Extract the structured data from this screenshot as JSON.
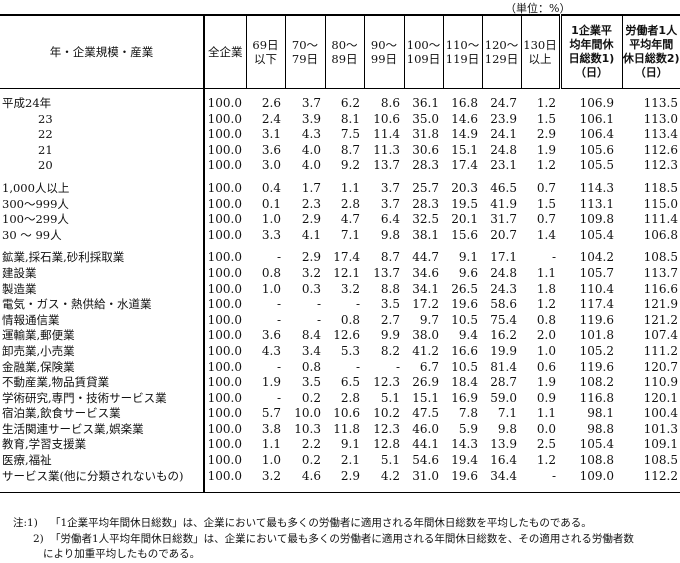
{
  "unit": "（単位：%）",
  "headers": {
    "label": "年・企業規模・産業",
    "all": "全企業",
    "cols": [
      [
        "69日",
        "以下"
      ],
      [
        "70～",
        "79日"
      ],
      [
        "80～",
        "89日"
      ],
      [
        "90～",
        "99日"
      ],
      [
        "100～",
        "109日"
      ],
      [
        "110～",
        "119日"
      ],
      [
        "120～",
        "129日"
      ],
      [
        "130日",
        "以上"
      ]
    ],
    "avg_company": [
      "1企業平",
      "均年間休",
      "日総数1)",
      "（日）"
    ],
    "avg_worker": [
      "労働者1人",
      "平均年間",
      "休日総数2)",
      "（日）"
    ]
  },
  "groups": [
    {
      "rows": [
        {
          "label": "平成24年",
          "indent": false,
          "values": [
            "100.0",
            "2.6",
            "3.7",
            "6.2",
            "8.6",
            "36.1",
            "16.8",
            "24.7",
            "1.2",
            "106.9",
            "113.5"
          ]
        },
        {
          "label": "23",
          "indent": true,
          "values": [
            "100.0",
            "2.4",
            "3.9",
            "8.1",
            "10.6",
            "35.0",
            "14.6",
            "23.9",
            "1.5",
            "106.1",
            "113.0"
          ]
        },
        {
          "label": "22",
          "indent": true,
          "values": [
            "100.0",
            "3.1",
            "4.3",
            "7.5",
            "11.4",
            "31.8",
            "14.9",
            "24.1",
            "2.9",
            "106.4",
            "113.4"
          ]
        },
        {
          "label": "21",
          "indent": true,
          "values": [
            "100.0",
            "3.6",
            "4.0",
            "8.7",
            "11.3",
            "30.6",
            "15.1",
            "24.8",
            "1.9",
            "105.6",
            "112.6"
          ]
        },
        {
          "label": "20",
          "indent": true,
          "values": [
            "100.0",
            "3.0",
            "4.0",
            "9.2",
            "13.7",
            "28.3",
            "17.4",
            "23.1",
            "1.2",
            "105.5",
            "112.3"
          ]
        }
      ]
    },
    {
      "rows": [
        {
          "label": "1,000人以上",
          "indent": false,
          "values": [
            "100.0",
            "0.4",
            "1.7",
            "1.1",
            "3.7",
            "25.7",
            "20.3",
            "46.5",
            "0.7",
            "114.3",
            "118.5"
          ]
        },
        {
          "label": "300～999人",
          "indent": false,
          "values": [
            "100.0",
            "0.1",
            "2.3",
            "2.8",
            "3.7",
            "28.3",
            "19.5",
            "41.9",
            "1.5",
            "113.1",
            "115.0"
          ]
        },
        {
          "label": "100～299人",
          "indent": false,
          "values": [
            "100.0",
            "1.0",
            "2.9",
            "4.7",
            "6.4",
            "32.5",
            "20.1",
            "31.7",
            "0.7",
            "109.8",
            "111.4"
          ]
        },
        {
          "label": "30 ～ 99人",
          "indent": false,
          "values": [
            "100.0",
            "3.3",
            "4.1",
            "7.1",
            "9.8",
            "38.1",
            "15.6",
            "20.7",
            "1.4",
            "105.4",
            "106.8"
          ]
        }
      ]
    },
    {
      "rows": [
        {
          "label": "鉱業,採石業,砂利採取業",
          "indent": false,
          "values": [
            "100.0",
            "-",
            "2.9",
            "17.4",
            "8.7",
            "44.7",
            "9.1",
            "17.1",
            "-",
            "104.2",
            "108.5"
          ]
        },
        {
          "label": "建設業",
          "indent": false,
          "values": [
            "100.0",
            "0.8",
            "3.2",
            "12.1",
            "13.7",
            "34.6",
            "9.6",
            "24.8",
            "1.1",
            "105.7",
            "113.7"
          ]
        },
        {
          "label": "製造業",
          "indent": false,
          "values": [
            "100.0",
            "1.0",
            "0.3",
            "3.2",
            "8.8",
            "34.1",
            "26.5",
            "24.3",
            "1.8",
            "110.4",
            "116.6"
          ]
        },
        {
          "label": "電気・ガス・熱供給・水道業",
          "indent": false,
          "values": [
            "100.0",
            "-",
            "-",
            "-",
            "3.5",
            "17.2",
            "19.6",
            "58.6",
            "1.2",
            "117.4",
            "121.9"
          ]
        },
        {
          "label": "情報通信業",
          "indent": false,
          "values": [
            "100.0",
            "-",
            "-",
            "0.8",
            "2.7",
            "9.7",
            "10.5",
            "75.4",
            "0.8",
            "119.6",
            "121.2"
          ]
        },
        {
          "label": "運輸業,郵便業",
          "indent": false,
          "values": [
            "100.0",
            "3.6",
            "8.4",
            "12.6",
            "9.9",
            "38.0",
            "9.4",
            "16.2",
            "2.0",
            "101.8",
            "107.4"
          ]
        },
        {
          "label": "卸売業,小売業",
          "indent": false,
          "values": [
            "100.0",
            "4.3",
            "3.4",
            "5.3",
            "8.2",
            "41.2",
            "16.6",
            "19.9",
            "1.0",
            "105.2",
            "111.2"
          ]
        },
        {
          "label": "金融業,保険業",
          "indent": false,
          "values": [
            "100.0",
            "-",
            "0.8",
            "-",
            "-",
            "6.7",
            "10.5",
            "81.4",
            "0.6",
            "119.6",
            "120.7"
          ]
        },
        {
          "label": "不動産業,物品賃貸業",
          "indent": false,
          "values": [
            "100.0",
            "1.9",
            "3.5",
            "6.5",
            "12.3",
            "26.9",
            "18.4",
            "28.7",
            "1.9",
            "108.2",
            "110.9"
          ]
        },
        {
          "label": "学術研究,専門・技術サービス業",
          "indent": false,
          "values": [
            "100.0",
            "-",
            "0.2",
            "2.8",
            "5.1",
            "15.1",
            "16.9",
            "59.0",
            "0.9",
            "116.8",
            "120.1"
          ]
        },
        {
          "label": "宿泊業,飲食サービス業",
          "indent": false,
          "values": [
            "100.0",
            "5.7",
            "10.0",
            "10.6",
            "10.2",
            "47.5",
            "7.8",
            "7.1",
            "1.1",
            "98.1",
            "100.4"
          ]
        },
        {
          "label": "生活関連サービス業,娯楽業",
          "indent": false,
          "values": [
            "100.0",
            "3.8",
            "10.3",
            "11.8",
            "12.3",
            "46.0",
            "5.9",
            "9.8",
            "0.0",
            "98.8",
            "101.3"
          ]
        },
        {
          "label": "教育,学習支援業",
          "indent": false,
          "values": [
            "100.0",
            "1.1",
            "2.2",
            "9.1",
            "12.8",
            "44.1",
            "14.3",
            "13.9",
            "2.5",
            "105.4",
            "109.1"
          ]
        },
        {
          "label": "医療,福祉",
          "indent": false,
          "values": [
            "100.0",
            "1.0",
            "0.2",
            "2.1",
            "5.1",
            "54.6",
            "19.4",
            "16.4",
            "1.2",
            "108.8",
            "108.5"
          ]
        },
        {
          "label": "サービス業(他に分類されないもの)",
          "indent": false,
          "values": [
            "100.0",
            "3.2",
            "4.6",
            "2.9",
            "4.2",
            "31.0",
            "19.6",
            "34.4",
            "-",
            "109.0",
            "112.2"
          ]
        }
      ]
    }
  ],
  "notes": [
    {
      "prefix": "注:1)",
      "text": "「1企業平均年間休日総数」は、企業において最も多くの労働者に適用される年間休日総数を平均したものである。"
    },
    {
      "prefix": "2)",
      "text": "「労働者1人平均年間休日総数」は、企業において最も多くの労働者に適用される年間休日総数を、その適用される労働者数"
    },
    {
      "prefix": "",
      "text": "により加重平均したものである。"
    }
  ]
}
